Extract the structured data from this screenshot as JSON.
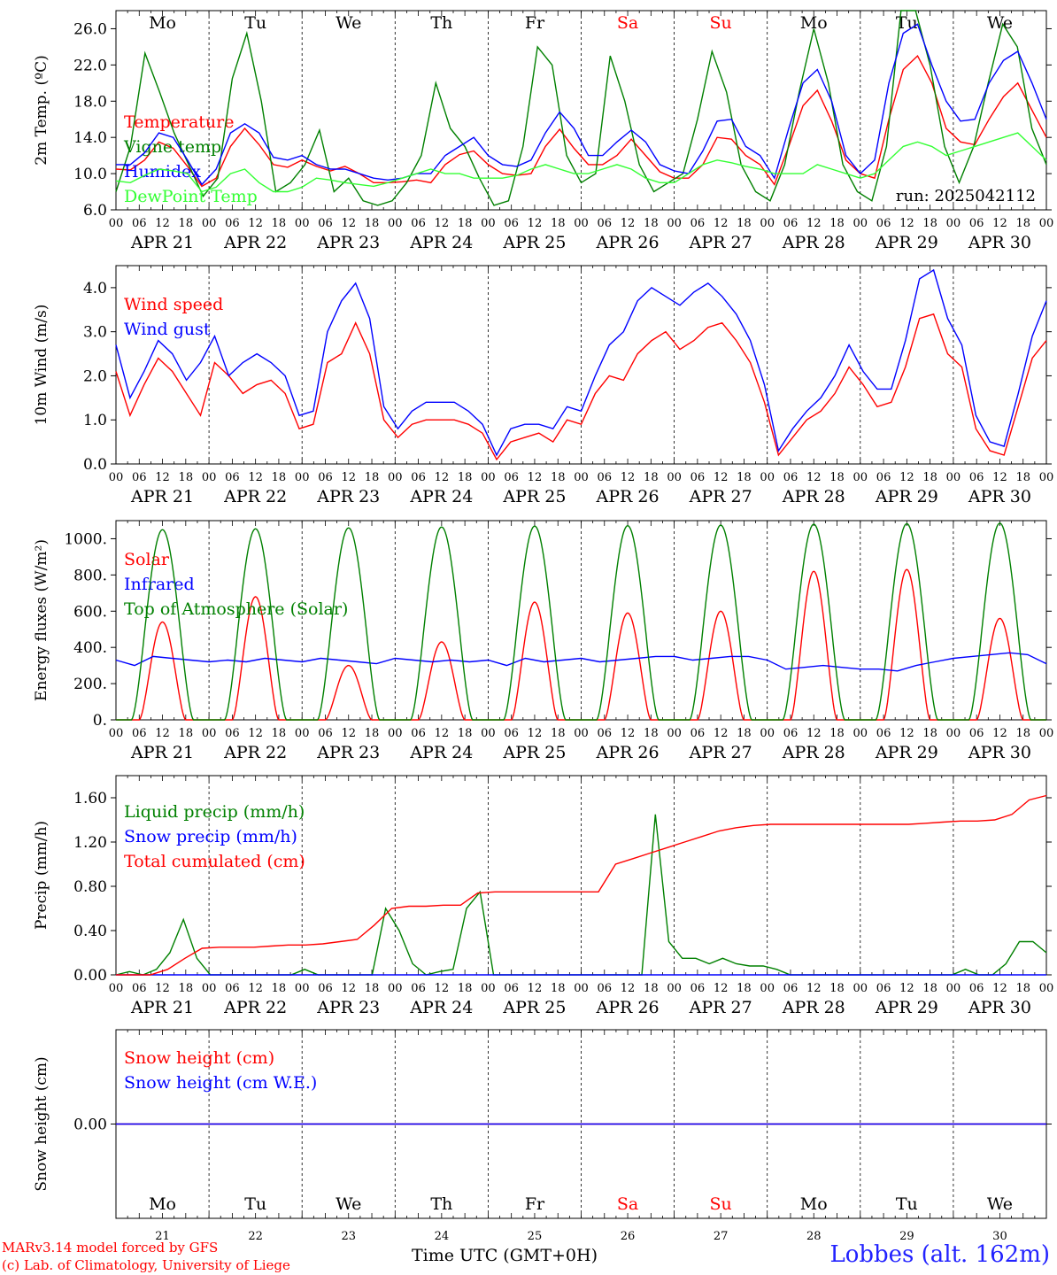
{
  "chart_data": [
    {
      "type": "line",
      "ylabel": "2m Temp. (ºC)",
      "ylim": [
        6,
        28
      ],
      "yticks": [
        "6.0",
        "10.0",
        "14.0",
        "18.0",
        "22.0",
        "26.0"
      ],
      "ytick_values": [
        6,
        10,
        14,
        18,
        22,
        26
      ],
      "weekday_labels": [
        "Mo",
        "Tu",
        "We",
        "Th",
        "Fr",
        "Sa",
        "Su",
        "Mo",
        "Tu",
        "We"
      ],
      "annotation": "run: 2025042112",
      "x_step_hours": 6,
      "series": [
        {
          "name": "Temperature",
          "color": "#ff0000",
          "values": [
            10.5,
            10.4,
            11.5,
            13.5,
            12.8,
            10.8,
            8.6,
            9.5,
            13.0,
            15.0,
            13.2,
            11.0,
            10.7,
            11.5,
            10.8,
            10.3,
            10.8,
            10.0,
            9.0,
            9.0,
            9.1,
            9.3,
            9.0,
            11.0,
            12.1,
            12.5,
            11.0,
            10.0,
            9.8,
            10.0,
            13.0,
            14.9,
            12.8,
            11.0,
            11.0,
            12.0,
            13.8,
            12.0,
            10.2,
            9.5,
            9.5,
            11.0,
            14.0,
            13.8,
            12.0,
            11.0,
            8.8,
            13.0,
            17.5,
            19.2,
            15.8,
            11.5,
            10.0,
            9.5,
            16.0,
            21.5,
            23.0,
            20.0,
            15.0,
            13.5,
            13.2,
            16.0,
            18.5,
            20.0,
            17.0,
            14.0
          ]
        },
        {
          "name": "Vigne temp",
          "color": "#008000",
          "values": [
            8.0,
            13.0,
            23.3,
            19.0,
            14.5,
            11.0,
            7.5,
            9.5,
            20.5,
            25.5,
            18.0,
            8.0,
            9.0,
            11.0,
            14.8,
            8.0,
            9.5,
            7.0,
            6.5,
            7.0,
            9.0,
            12.0,
            20.0,
            15.0,
            13.0,
            9.5,
            6.5,
            7.0,
            13.0,
            24.0,
            22.0,
            12.0,
            9.0,
            10.0,
            23.0,
            18.0,
            11.0,
            8.0,
            9.0,
            10.0,
            16.0,
            23.5,
            19.0,
            11.0,
            8.0,
            7.0,
            11.0,
            19.0,
            26.0,
            20.0,
            11.0,
            8.0,
            7.0,
            13.0,
            28.0,
            28.0,
            22.0,
            13.0,
            9.0,
            13.0,
            20.0,
            26.5,
            24.0,
            15.0,
            11.0
          ]
        },
        {
          "name": "Humidex",
          "color": "#0000ff",
          "values": [
            11.0,
            11.0,
            12.3,
            14.5,
            14.0,
            11.5,
            8.8,
            10.5,
            14.5,
            15.5,
            14.5,
            11.8,
            11.5,
            12.0,
            11.0,
            10.5,
            10.5,
            10.0,
            9.5,
            9.3,
            9.5,
            10.0,
            10.0,
            12.0,
            13.0,
            14.0,
            12.0,
            11.0,
            10.8,
            11.5,
            14.5,
            16.8,
            15.0,
            12.0,
            12.0,
            13.5,
            14.8,
            13.5,
            11.0,
            10.3,
            10.0,
            12.5,
            15.8,
            16.0,
            13.0,
            12.0,
            9.5,
            15.0,
            20.0,
            21.5,
            18.0,
            12.0,
            10.0,
            11.5,
            20.0,
            25.5,
            26.5,
            22.0,
            18.0,
            15.8,
            16.0,
            20.0,
            22.5,
            23.5,
            20.0,
            16.0
          ]
        },
        {
          "name": "DewPoint Temp",
          "color": "#33ff33",
          "values": [
            9.2,
            9.0,
            9.8,
            10.5,
            10.3,
            10.0,
            8.0,
            8.5,
            10.0,
            10.5,
            9.0,
            8.0,
            8.0,
            8.5,
            9.5,
            9.3,
            9.0,
            8.8,
            8.6,
            9.0,
            9.5,
            10.0,
            10.5,
            10.0,
            10.0,
            9.5,
            9.5,
            9.5,
            9.8,
            10.5,
            11.0,
            10.5,
            10.0,
            10.0,
            10.5,
            11.0,
            10.5,
            9.5,
            9.0,
            9.0,
            10.0,
            11.0,
            11.5,
            11.2,
            10.8,
            10.5,
            10.0,
            10.0,
            10.0,
            11.0,
            10.5,
            10.0,
            9.5,
            10.0,
            11.5,
            13.0,
            13.5,
            13.0,
            12.0,
            12.5,
            13.0,
            13.5,
            14.0,
            14.5,
            13.0,
            11.5
          ]
        }
      ],
      "x_axis": {
        "hour_ticks": [
          "00",
          "06",
          "12",
          "18"
        ],
        "day_labels": [
          "APR 21",
          "APR 22",
          "APR 23",
          "APR 24",
          "APR 25",
          "APR 26",
          "APR 27",
          "APR 28",
          "APR 29",
          "APR 30"
        ]
      }
    },
    {
      "type": "line",
      "ylabel": "10m Wind (m/s)",
      "ylim": [
        0,
        4.5
      ],
      "yticks": [
        "0.0",
        "1.0",
        "2.0",
        "3.0",
        "4.0"
      ],
      "ytick_values": [
        0,
        1,
        2,
        3,
        4
      ],
      "series": [
        {
          "name": "Wind speed",
          "color": "#ff0000",
          "values": [
            2.1,
            1.1,
            1.8,
            2.4,
            2.1,
            1.6,
            1.1,
            2.3,
            2.0,
            1.6,
            1.8,
            1.9,
            1.6,
            0.8,
            0.9,
            2.3,
            2.5,
            3.2,
            2.5,
            1.0,
            0.6,
            0.9,
            1.0,
            1.0,
            1.0,
            0.9,
            0.7,
            0.1,
            0.5,
            0.6,
            0.7,
            0.5,
            1.0,
            0.9,
            1.6,
            2.0,
            1.9,
            2.5,
            2.8,
            3.0,
            2.6,
            2.8,
            3.1,
            3.2,
            2.8,
            2.3,
            1.4,
            0.2,
            0.6,
            1.0,
            1.2,
            1.6,
            2.2,
            1.8,
            1.3,
            1.4,
            2.2,
            3.3,
            3.4,
            2.5,
            2.2,
            0.8,
            0.3,
            0.2,
            1.3,
            2.4,
            2.8
          ]
        },
        {
          "name": "Wind gust",
          "color": "#0000ff",
          "values": [
            2.7,
            1.5,
            2.1,
            2.8,
            2.5,
            1.9,
            2.3,
            2.9,
            2.0,
            2.3,
            2.5,
            2.3,
            2.0,
            1.1,
            1.2,
            3.0,
            3.7,
            4.1,
            3.3,
            1.3,
            0.8,
            1.2,
            1.4,
            1.4,
            1.4,
            1.2,
            0.9,
            0.2,
            0.8,
            0.9,
            0.9,
            0.8,
            1.3,
            1.2,
            2.0,
            2.7,
            3.0,
            3.7,
            4.0,
            3.8,
            3.6,
            3.9,
            4.1,
            3.8,
            3.4,
            2.8,
            1.8,
            0.3,
            0.8,
            1.2,
            1.5,
            2.0,
            2.7,
            2.1,
            1.7,
            1.7,
            2.8,
            4.2,
            4.4,
            3.3,
            2.7,
            1.1,
            0.5,
            0.4,
            1.6,
            2.9,
            3.7
          ]
        }
      ]
    },
    {
      "type": "line",
      "ylabel": "Energy fluxes (W/m²)",
      "ylim": [
        0,
        1100
      ],
      "yticks": [
        "0.",
        "200.",
        "400.",
        "600.",
        "800.",
        "1000."
      ],
      "ytick_values": [
        0,
        200,
        400,
        600,
        800,
        1000
      ],
      "series": [
        {
          "name": "Solar",
          "color": "#ff0000",
          "peaks": [
            540,
            680,
            300,
            430,
            650,
            590,
            600,
            820,
            830,
            560
          ]
        },
        {
          "name": "Infrared",
          "color": "#0000ff",
          "values": [
            330,
            300,
            350,
            340,
            330,
            320,
            330,
            320,
            340,
            330,
            320,
            340,
            330,
            320,
            310,
            340,
            330,
            320,
            330,
            320,
            330,
            300,
            340,
            320,
            330,
            340,
            320,
            330,
            340,
            350,
            350,
            330,
            340,
            350,
            350,
            330,
            280,
            290,
            300,
            290,
            280,
            280,
            270,
            300,
            320,
            340,
            350,
            360,
            370,
            360,
            310
          ]
        },
        {
          "name": "Top of Atmosphere (Solar)",
          "color": "#008000",
          "peaks": [
            1050,
            1055,
            1060,
            1065,
            1070,
            1072,
            1075,
            1080,
            1083,
            1086
          ]
        }
      ]
    },
    {
      "type": "line",
      "ylabel": "Precip (mm/h)",
      "ylim": [
        0,
        1.8
      ],
      "yticks": [
        "0.00",
        "0.40",
        "0.80",
        "1.20",
        "1.60"
      ],
      "ytick_values": [
        0,
        0.4,
        0.8,
        1.2,
        1.6
      ],
      "series": [
        {
          "name": "Liquid precip (mm/h)",
          "color": "#008000",
          "values": [
            0,
            0.03,
            0,
            0.05,
            0.2,
            0.5,
            0.15,
            0,
            0,
            0,
            0,
            0,
            0,
            0,
            0.05,
            0,
            0,
            0,
            0,
            0,
            0.6,
            0.4,
            0.1,
            0,
            0.03,
            0.05,
            0.6,
            0.75,
            0,
            0,
            0,
            0,
            0,
            0,
            0,
            0,
            0,
            0,
            0,
            0,
            1.45,
            0.3,
            0.15,
            0.15,
            0.1,
            0.15,
            0.1,
            0.08,
            0.08,
            0.05,
            0,
            0,
            0,
            0,
            0,
            0,
            0,
            0,
            0,
            0,
            0,
            0,
            0,
            0.05,
            0,
            0,
            0.1,
            0.3,
            0.3,
            0.2
          ]
        },
        {
          "name": "Snow precip (mm/h)",
          "color": "#0000ff",
          "values": []
        },
        {
          "name": "Total cumulated (cm)",
          "color": "#ff0000",
          "values": [
            0,
            0,
            0,
            0.05,
            0.15,
            0.24,
            0.25,
            0.25,
            0.25,
            0.26,
            0.27,
            0.27,
            0.28,
            0.3,
            0.32,
            0.45,
            0.6,
            0.62,
            0.62,
            0.63,
            0.63,
            0.74,
            0.75,
            0.75,
            0.75,
            0.75,
            0.75,
            0.75,
            0.75,
            1.0,
            1.05,
            1.1,
            1.15,
            1.2,
            1.25,
            1.3,
            1.33,
            1.35,
            1.36,
            1.36,
            1.36,
            1.36,
            1.36,
            1.36,
            1.36,
            1.36,
            1.36,
            1.37,
            1.38,
            1.39,
            1.39,
            1.4,
            1.45,
            1.58,
            1.62
          ]
        }
      ]
    },
    {
      "type": "line",
      "ylabel": "Snow height (cm)",
      "ylim": [
        -1,
        1
      ],
      "yticks": [
        "0.00"
      ],
      "ytick_values": [
        0
      ],
      "weekday_labels": [
        "Mo",
        "Tu",
        "We",
        "Th",
        "Fr",
        "Sa",
        "Su",
        "Mo",
        "Tu",
        "We"
      ],
      "day_numbers": [
        "21",
        "22",
        "23",
        "24",
        "25",
        "26",
        "27",
        "28",
        "29",
        "30"
      ],
      "xlabel": "Time UTC (GMT+0H)",
      "series": [
        {
          "name": "Snow height (cm)",
          "color": "#ff0000",
          "values": [
            0,
            0
          ]
        },
        {
          "name": "Snow height (cm W.E.)",
          "color": "#0000ff",
          "values": [
            0,
            0
          ]
        }
      ]
    }
  ],
  "footer": {
    "credit_line1": "MARv3.14 model forced by GFS",
    "credit_line2": "(c) Lab. of Climatology, University of Liege",
    "station": "Lobbes (alt. 162m)"
  },
  "colors": {
    "weekend": "#ff0000",
    "weekday": "#000000"
  }
}
